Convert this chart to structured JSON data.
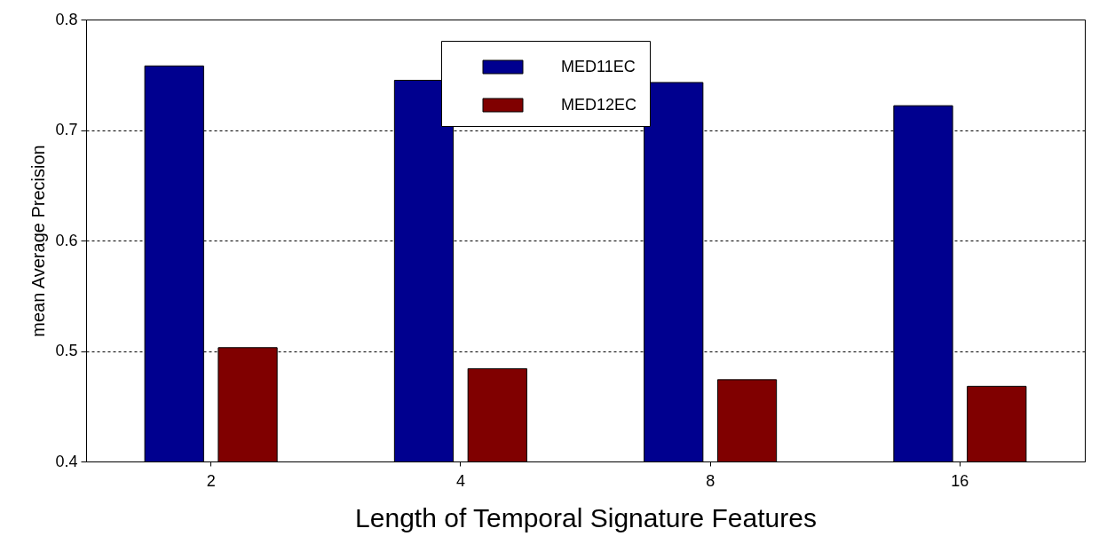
{
  "chart_data": {
    "type": "bar",
    "xlabel": "Length of Temporal Signature Features",
    "ylabel": "mean Average Precision",
    "categories": [
      "2",
      "4",
      "8",
      "16"
    ],
    "series": [
      {
        "name": "MED11EC",
        "color": "#00008f",
        "values": [
          0.758,
          0.745,
          0.743,
          0.722
        ]
      },
      {
        "name": "MED12EC",
        "color": "#800000",
        "values": [
          0.503,
          0.484,
          0.474,
          0.468
        ]
      }
    ],
    "ylim": [
      0.4,
      0.8
    ],
    "yticks": [
      0.4,
      0.5,
      0.6,
      0.7,
      0.8
    ],
    "grid": "y",
    "legend": "top"
  }
}
